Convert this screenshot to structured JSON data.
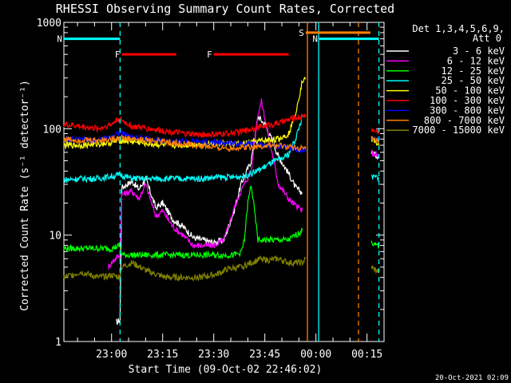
{
  "chart_data": {
    "type": "line",
    "title": "RHESSI Observing Summary Count Rates, Corrected",
    "ylabel": "Corrected Count Rate (s⁻¹ detector⁻¹)",
    "xlabel": "Start Time (09-Oct-02 22:46:02)",
    "x_unit": "minutes after 22:46:02",
    "xlim": [
      0,
      94
    ],
    "ylim": [
      1,
      1000
    ],
    "y_scale": "log",
    "x_ticks": [
      {
        "t": 14,
        "label": "23:00"
      },
      {
        "t": 29,
        "label": "23:15"
      },
      {
        "t": 44,
        "label": "23:30"
      },
      {
        "t": 59,
        "label": "23:45"
      },
      {
        "t": 74,
        "label": "00:00"
      },
      {
        "t": 89,
        "label": "00:15"
      }
    ],
    "y_ticks": [
      {
        "v": 1,
        "label": "1"
      },
      {
        "v": 10,
        "label": "10"
      },
      {
        "v": 100,
        "label": "100"
      },
      {
        "v": 1000,
        "label": "1000"
      }
    ],
    "legend_header": [
      "Det 1,3,4,5,6,9,",
      "Att 0"
    ],
    "legend_placement": "right",
    "flags": [
      {
        "label": "N",
        "color": "#00ffff",
        "y": 700,
        "x0": 0,
        "x1": 16.5
      },
      {
        "label": "N",
        "color": "#00ffff",
        "y": 700,
        "x0": 75,
        "x1": 92.5
      },
      {
        "label": "F",
        "color": "#ff0000",
        "y": 500,
        "x0": 17,
        "x1": 33
      },
      {
        "label": "F",
        "color": "#ff0000",
        "y": 500,
        "x0": 44,
        "x1": 66
      },
      {
        "label": "S",
        "color": "#ff8000",
        "y": 800,
        "x0": 71,
        "x1": 90
      }
    ],
    "vlines": [
      {
        "x": 16.5,
        "color": "#00ffff",
        "style": "dashed"
      },
      {
        "x": 71.5,
        "color": "#ff8000",
        "style": "solid"
      },
      {
        "x": 74.8,
        "color": "#00ffff",
        "style": "solid"
      },
      {
        "x": 86.5,
        "color": "#ff8000",
        "style": "dashed"
      },
      {
        "x": 92.5,
        "color": "#00ffff",
        "style": "dashed"
      }
    ],
    "series": [
      {
        "name": "3 - 6 keV",
        "color": "#ffffff",
        "x": [
          15.3,
          16.5,
          17,
          20,
          22,
          24,
          27,
          29,
          32,
          35,
          38,
          41,
          44,
          47,
          50,
          52,
          55,
          57,
          59,
          61,
          63,
          66,
          68,
          70,
          90.3,
          91,
          92.5
        ],
        "y": [
          1.5,
          1.6,
          28,
          32,
          27,
          34,
          18,
          20,
          14,
          12,
          9.5,
          9,
          8.5,
          9,
          17,
          30,
          50,
          130,
          110,
          80,
          55,
          38,
          28,
          25,
          60,
          58,
          55
        ]
      },
      {
        "name": "6 - 12 keV",
        "color": "#ff00ff",
        "x": [
          13,
          15,
          16.5,
          17,
          20,
          22,
          24,
          27,
          29,
          32,
          35,
          38,
          41,
          44,
          47,
          50,
          52,
          55,
          57,
          58,
          60,
          63,
          66,
          68,
          70,
          90.3,
          91,
          92.5
        ],
        "y": [
          5,
          6,
          6.5,
          24,
          26,
          22,
          30,
          15,
          17,
          12,
          10,
          8,
          8,
          8,
          9,
          18,
          26,
          40,
          140,
          180,
          90,
          30,
          22,
          19,
          17,
          60,
          58,
          55
        ]
      },
      {
        "name": "12 - 25 keV",
        "color": "#00ff00",
        "x": [
          0,
          5,
          10,
          14,
          16.5,
          17,
          20,
          25,
          30,
          35,
          40,
          45,
          50,
          52,
          53,
          54,
          55,
          57,
          60,
          63,
          66,
          70,
          90.3,
          91,
          92.5
        ],
        "y": [
          7.5,
          7.5,
          7.5,
          7.5,
          8,
          6.5,
          6.5,
          6.5,
          6.5,
          6.5,
          6.5,
          6.5,
          6.5,
          6.8,
          9,
          20,
          30,
          9,
          9,
          9,
          9,
          11,
          9,
          8,
          8
        ]
      },
      {
        "name": "25 - 50 keV",
        "color": "#00ffff",
        "x": [
          0,
          5,
          10,
          16.5,
          20,
          25,
          30,
          35,
          40,
          45,
          50,
          53,
          55,
          58,
          61,
          64,
          66,
          68,
          70,
          90.3,
          91,
          92.5
        ],
        "y": [
          33,
          34,
          34,
          37,
          34,
          34,
          34,
          34,
          34,
          35,
          35,
          36,
          38,
          42,
          48,
          52,
          58,
          80,
          130,
          35,
          35,
          35
        ]
      },
      {
        "name": "50 - 100 keV",
        "color": "#ffff00",
        "x": [
          0,
          5,
          10,
          14,
          16,
          20,
          25,
          30,
          35,
          40,
          45,
          50,
          53,
          55,
          57,
          60,
          63,
          66,
          68,
          70,
          71,
          90.3,
          91,
          92.5
        ],
        "y": [
          70,
          70,
          72,
          74,
          78,
          76,
          72,
          70,
          70,
          72,
          73,
          72,
          72,
          74,
          76,
          78,
          80,
          90,
          140,
          280,
          300,
          80,
          78,
          70
        ]
      },
      {
        "name": "100 - 300 keV",
        "color": "#ff0000",
        "x": [
          0,
          5,
          10,
          14,
          16,
          20,
          25,
          30,
          35,
          40,
          45,
          50,
          53,
          55,
          58,
          61,
          64,
          67,
          70,
          71,
          90.3,
          91,
          92.5
        ],
        "y": [
          110,
          105,
          100,
          110,
          125,
          105,
          100,
          95,
          90,
          88,
          88,
          92,
          95,
          100,
          105,
          110,
          115,
          125,
          130,
          135,
          100,
          95,
          95
        ]
      },
      {
        "name": "300 - 800 keV",
        "color": "#0000ff",
        "x": [
          0,
          5,
          10,
          14,
          16,
          20,
          25,
          30,
          35,
          40,
          45,
          50,
          55,
          60,
          65,
          70,
          71,
          90.3,
          91,
          92.5
        ],
        "y": [
          80,
          78,
          78,
          84,
          92,
          84,
          80,
          76,
          76,
          75,
          74,
          73,
          72,
          70,
          67,
          63,
          63,
          85,
          80,
          80
        ]
      },
      {
        "name": "800 - 7000 keV",
        "color": "#ff8000",
        "x": [
          0,
          5,
          10,
          14,
          16,
          20,
          25,
          30,
          35,
          40,
          45,
          50,
          55,
          60,
          65,
          70,
          71,
          90.3,
          91,
          92.5
        ],
        "y": [
          80,
          78,
          78,
          80,
          83,
          80,
          78,
          75,
          72,
          69,
          66,
          66,
          68,
          69,
          68,
          65,
          64,
          80,
          78,
          76
        ]
      },
      {
        "name": "7000 - 15000 keV",
        "color": "#808000",
        "x": [
          0,
          5,
          10,
          14,
          16.5,
          17,
          20,
          25,
          30,
          35,
          40,
          45,
          48,
          52,
          55,
          58,
          60,
          63,
          66,
          70,
          71,
          90.3,
          91,
          92.5
        ],
        "y": [
          4,
          4.5,
          4,
          4.2,
          4,
          5,
          5.5,
          4.5,
          4,
          4,
          4,
          4.3,
          4.8,
          5,
          5.5,
          6,
          5.8,
          6,
          5.5,
          5.5,
          6,
          5,
          4.8,
          4.5
        ]
      }
    ],
    "gaps": [
      {
        "x0": 71.5,
        "x1": 90.3
      }
    ],
    "footer_timestamp": "20-Oct-2021 02:09"
  }
}
